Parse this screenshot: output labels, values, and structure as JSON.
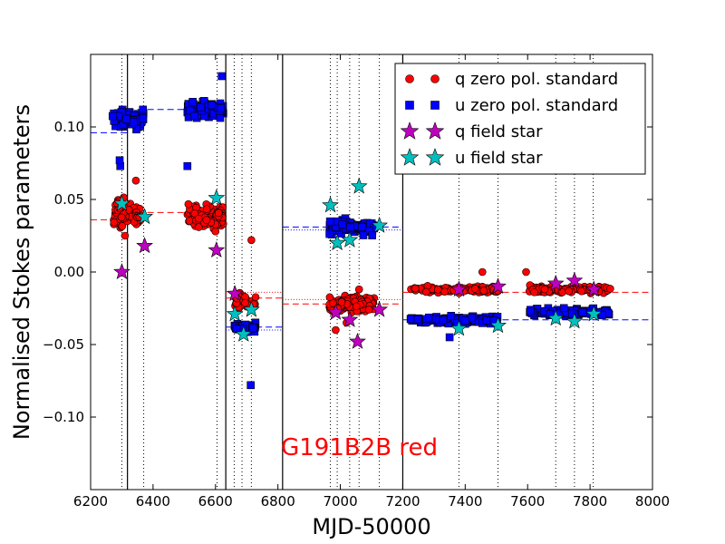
{
  "chart_data": {
    "type": "scatter",
    "xlabel": "MJD-50000",
    "ylabel": "Normalised Stokes parameters",
    "xlim": [
      6200,
      8000
    ],
    "ylim": [
      -0.15,
      0.15
    ],
    "xticks": [
      6200,
      6400,
      6600,
      6800,
      7000,
      7200,
      7400,
      7600,
      7800,
      8000
    ],
    "yticks": [
      {
        "value": 0.1,
        "label": "0.10"
      },
      {
        "value": 0.05,
        "label": "0.05"
      },
      {
        "value": 0.0,
        "label": "0.00"
      },
      {
        "value": -0.05,
        "label": "−0.05"
      },
      {
        "value": -0.1,
        "label": "−0.10"
      }
    ],
    "annotation": {
      "text": "G191B2B red",
      "x": 6810,
      "y": -0.12,
      "color": "#ff0000"
    },
    "vertical_lines_solid": [
      6318,
      6633,
      6815,
      7200
    ],
    "vertical_lines_dotted": [
      6300,
      6370,
      6605,
      6660,
      6685,
      6715,
      6968,
      6990,
      7030,
      7060,
      7125,
      7380,
      7505,
      7690,
      7750,
      7810
    ],
    "segments": [
      {
        "x0": 6200,
        "x1": 6318,
        "q": 0.036,
        "u": 0.096
      },
      {
        "x0": 6318,
        "x1": 6633,
        "q": 0.041,
        "u": 0.112
      },
      {
        "x0": 6633,
        "x1": 6815,
        "q": -0.018,
        "u": -0.038,
        "q_dotted": -0.014,
        "u_dotted": -0.04
      },
      {
        "x0": 6815,
        "x1": 7200,
        "q": -0.022,
        "u": 0.031,
        "q_dotted": -0.019,
        "u_dotted": 0.029
      },
      {
        "x0": 7200,
        "x1": 8000,
        "q": -0.014,
        "u": -0.033
      }
    ],
    "q_std_clusters": [
      {
        "x0": 6270,
        "x1": 6360,
        "center": 0.04,
        "spread": 0.018,
        "n": 80
      },
      {
        "x0": 6510,
        "x1": 6625,
        "center": 0.038,
        "spread": 0.014,
        "n": 100
      },
      {
        "x0": 6660,
        "x1": 6730,
        "center": -0.02,
        "spread": 0.01,
        "n": 40
      },
      {
        "x0": 6965,
        "x1": 7110,
        "center": -0.022,
        "spread": 0.01,
        "n": 110
      },
      {
        "x0": 7225,
        "x1": 7505,
        "center": -0.012,
        "spread": 0.005,
        "n": 120
      },
      {
        "x0": 7605,
        "x1": 7865,
        "center": -0.012,
        "spread": 0.005,
        "n": 110
      }
    ],
    "q_std_outliers": [
      [
        6345,
        0.063
      ],
      [
        6310,
        0.025
      ],
      [
        6600,
        0.028
      ],
      [
        6715,
        0.022
      ],
      [
        6985,
        -0.04
      ],
      [
        7020,
        -0.035
      ],
      [
        7060,
        -0.012
      ],
      [
        7595,
        0.0
      ],
      [
        7455,
        0.0
      ]
    ],
    "u_std_clusters": [
      {
        "x0": 6270,
        "x1": 6370,
        "center": 0.105,
        "spread": 0.012,
        "n": 70
      },
      {
        "x0": 6510,
        "x1": 6625,
        "center": 0.112,
        "spread": 0.01,
        "n": 100
      },
      {
        "x0": 6660,
        "x1": 6730,
        "center": -0.038,
        "spread": 0.006,
        "n": 40
      },
      {
        "x0": 6965,
        "x1": 7110,
        "center": 0.031,
        "spread": 0.009,
        "n": 110
      },
      {
        "x0": 7225,
        "x1": 7505,
        "center": -0.033,
        "spread": 0.005,
        "n": 120
      },
      {
        "x0": 7605,
        "x1": 7865,
        "center": -0.028,
        "spread": 0.005,
        "n": 110
      }
    ],
    "u_std_outliers": [
      [
        6295,
        0.073
      ],
      [
        6293,
        0.077
      ],
      [
        6620,
        0.135
      ],
      [
        6510,
        0.073
      ],
      [
        6713,
        -0.078
      ],
      [
        7350,
        -0.045
      ]
    ],
    "q_field": [
      [
        6300,
        0.0
      ],
      [
        6373,
        0.018
      ],
      [
        6603,
        0.015
      ],
      [
        6662,
        -0.015
      ],
      [
        6985,
        -0.028
      ],
      [
        7030,
        -0.033
      ],
      [
        7055,
        -0.048
      ],
      [
        7125,
        -0.026
      ],
      [
        7380,
        -0.012
      ],
      [
        7505,
        -0.01
      ],
      [
        7690,
        -0.008
      ],
      [
        7750,
        -0.006
      ],
      [
        7812,
        -0.012
      ]
    ],
    "u_field": [
      [
        6300,
        0.047
      ],
      [
        6373,
        0.038
      ],
      [
        6603,
        0.051
      ],
      [
        6662,
        -0.029
      ],
      [
        6690,
        -0.043
      ],
      [
        6715,
        -0.026
      ],
      [
        6968,
        0.046
      ],
      [
        6990,
        0.02
      ],
      [
        7030,
        0.022
      ],
      [
        7060,
        0.059
      ],
      [
        7125,
        0.032
      ],
      [
        7380,
        -0.039
      ],
      [
        7505,
        -0.037
      ],
      [
        7690,
        -0.032
      ],
      [
        7750,
        -0.034
      ],
      [
        7812,
        -0.029
      ]
    ],
    "series": [
      {
        "name": "q zero pol. standard",
        "marker": "circle",
        "color": "#ff0000"
      },
      {
        "name": "u zero pol. standard",
        "marker": "square",
        "color": "#0000ff"
      },
      {
        "name": "q field star",
        "marker": "star",
        "color": "#bf00bf"
      },
      {
        "name": "u field star",
        "marker": "star",
        "color": "#00bfbf"
      }
    ],
    "legend_position": "top-right"
  }
}
